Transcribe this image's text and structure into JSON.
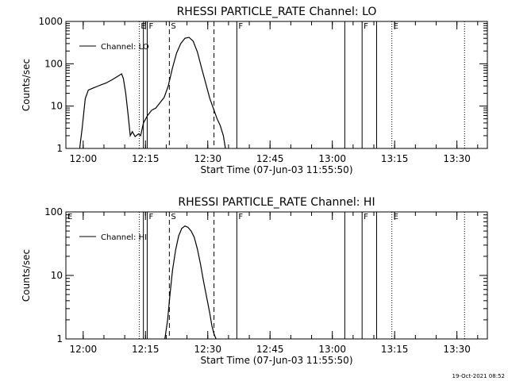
{
  "footer_timestamp": "19-Oct-2021 08:52",
  "chart_data": [
    {
      "type": "line",
      "title": "RHESSI PARTICLE_RATE Channel: LO",
      "xlabel": "Start Time (07-Jun-03 11:55:50)",
      "ylabel": "Counts/sec",
      "yscale": "log",
      "ylim": [
        1,
        1000
      ],
      "xlim": [
        "11:55:50",
        "13:37:20"
      ],
      "xticks": [
        {
          "t": "12:00",
          "label": "12:00"
        },
        {
          "t": "12:15",
          "label": "12:15"
        },
        {
          "t": "12:30",
          "label": "12:30"
        },
        {
          "t": "12:45",
          "label": "12:45"
        },
        {
          "t": "13:00",
          "label": "13:00"
        },
        {
          "t": "13:15",
          "label": "13:15"
        },
        {
          "t": "13:30",
          "label": "13:30"
        }
      ],
      "yticks": [
        {
          "v": 1,
          "label": "1"
        },
        {
          "v": 10,
          "label": "10"
        },
        {
          "v": 100,
          "label": "100"
        },
        {
          "v": 1000,
          "label": "1000"
        }
      ],
      "legend": {
        "position": "top-left",
        "label": "Channel: LO"
      },
      "series": [
        {
          "name": "Channel: LO",
          "points": [
            [
              "11:59:10",
              1.0
            ],
            [
              "11:59:45",
              3.0
            ],
            [
              "12:00:30",
              15
            ],
            [
              "12:01:15",
              24
            ],
            [
              "12:02:30",
              27
            ],
            [
              "12:04:00",
              31
            ],
            [
              "12:05:30",
              35
            ],
            [
              "12:07:00",
              42
            ],
            [
              "12:08:30",
              52
            ],
            [
              "12:09:15",
              58
            ],
            [
              "12:09:40",
              45
            ],
            [
              "12:10:15",
              20
            ],
            [
              "12:10:50",
              6
            ],
            [
              "12:11:20",
              2.0
            ],
            [
              "12:11:50",
              2.5
            ],
            [
              "12:12:30",
              1.9
            ],
            [
              "12:13:20",
              2.2
            ],
            [
              "12:13:50",
              2.0
            ],
            [
              "12:14:30",
              4.0
            ],
            [
              "12:15:30",
              6
            ],
            [
              "12:16:30",
              8
            ],
            [
              "12:17:30",
              9
            ],
            [
              "12:18:30",
              12
            ],
            [
              "12:19:30",
              16
            ],
            [
              "12:20:30",
              30
            ],
            [
              "12:21:30",
              80
            ],
            [
              "12:22:30",
              180
            ],
            [
              "12:23:30",
              300
            ],
            [
              "12:24:30",
              400
            ],
            [
              "12:25:30",
              420
            ],
            [
              "12:26:30",
              340
            ],
            [
              "12:27:30",
              190
            ],
            [
              "12:28:30",
              80
            ],
            [
              "12:29:30",
              35
            ],
            [
              "12:30:30",
              15
            ],
            [
              "12:31:30",
              8
            ],
            [
              "12:32:15",
              5
            ],
            [
              "12:33:00",
              3.5
            ],
            [
              "12:33:45",
              2.0
            ],
            [
              "12:34:15",
              1.0
            ]
          ]
        }
      ],
      "markers": [
        {
          "t": "12:13:30",
          "label": "E",
          "style": "dotted"
        },
        {
          "t": "12:14:30",
          "label": "",
          "style": "solid"
        },
        {
          "t": "12:15:25",
          "label": "F",
          "style": "solid"
        },
        {
          "t": "12:20:45",
          "label": "S",
          "style": "dashed"
        },
        {
          "t": "12:31:30",
          "label": "",
          "style": "dashed"
        },
        {
          "t": "12:37:00",
          "label": "F",
          "style": "solid"
        },
        {
          "t": "13:03:00",
          "label": "",
          "style": "solid"
        },
        {
          "t": "13:07:10",
          "label": "F",
          "style": "solid"
        },
        {
          "t": "13:10:40",
          "label": "",
          "style": "solid"
        },
        {
          "t": "13:14:20",
          "label": "E",
          "style": "dotted"
        },
        {
          "t": "13:31:50",
          "label": "",
          "style": "dotted"
        }
      ]
    },
    {
      "type": "line",
      "title": "RHESSI PARTICLE_RATE Channel: HI",
      "xlabel": "Start Time (07-Jun-03 11:55:50)",
      "ylabel": "Counts/sec",
      "yscale": "log",
      "ylim": [
        1,
        100
      ],
      "xlim": [
        "11:55:50",
        "13:37:20"
      ],
      "xticks": [
        {
          "t": "12:00",
          "label": "12:00"
        },
        {
          "t": "12:15",
          "label": "12:15"
        },
        {
          "t": "12:30",
          "label": "12:30"
        },
        {
          "t": "12:45",
          "label": "12:45"
        },
        {
          "t": "13:00",
          "label": "13:00"
        },
        {
          "t": "13:15",
          "label": "13:15"
        },
        {
          "t": "13:30",
          "label": "13:30"
        }
      ],
      "yticks": [
        {
          "v": 1,
          "label": "1"
        },
        {
          "v": 10,
          "label": "10"
        },
        {
          "v": 100,
          "label": "100"
        }
      ],
      "legend": {
        "position": "top-left",
        "label": "Channel: HI"
      },
      "series": [
        {
          "name": "Channel: HI",
          "points": [
            [
              "12:19:40",
              1.0
            ],
            [
              "12:20:20",
              2.0
            ],
            [
              "12:20:50",
              4.5
            ],
            [
              "12:21:30",
              12
            ],
            [
              "12:22:15",
              25
            ],
            [
              "12:23:00",
              42
            ],
            [
              "12:23:45",
              55
            ],
            [
              "12:24:30",
              60
            ],
            [
              "12:25:15",
              57
            ],
            [
              "12:26:00",
              50
            ],
            [
              "12:26:45",
              40
            ],
            [
              "12:27:30",
              26
            ],
            [
              "12:28:15",
              15
            ],
            [
              "12:29:00",
              8
            ],
            [
              "12:29:45",
              4.5
            ],
            [
              "12:30:30",
              2.5
            ],
            [
              "12:31:00",
              1.6
            ],
            [
              "12:31:30",
              1.2
            ],
            [
              "12:32:00",
              1.0
            ]
          ]
        }
      ],
      "markers": [
        {
          "t": "11:55:50",
          "label": "E",
          "style": "none"
        },
        {
          "t": "12:13:30",
          "label": "",
          "style": "dotted"
        },
        {
          "t": "12:14:30",
          "label": "",
          "style": "solid"
        },
        {
          "t": "12:15:25",
          "label": "F",
          "style": "solid"
        },
        {
          "t": "12:20:45",
          "label": "S",
          "style": "dashed"
        },
        {
          "t": "12:31:30",
          "label": "",
          "style": "dashed"
        },
        {
          "t": "12:37:00",
          "label": "F",
          "style": "solid"
        },
        {
          "t": "13:03:00",
          "label": "",
          "style": "solid"
        },
        {
          "t": "13:07:10",
          "label": "F",
          "style": "solid"
        },
        {
          "t": "13:10:40",
          "label": "",
          "style": "solid"
        },
        {
          "t": "13:14:20",
          "label": "E",
          "style": "dotted"
        },
        {
          "t": "13:31:50",
          "label": "",
          "style": "dotted"
        }
      ]
    }
  ]
}
